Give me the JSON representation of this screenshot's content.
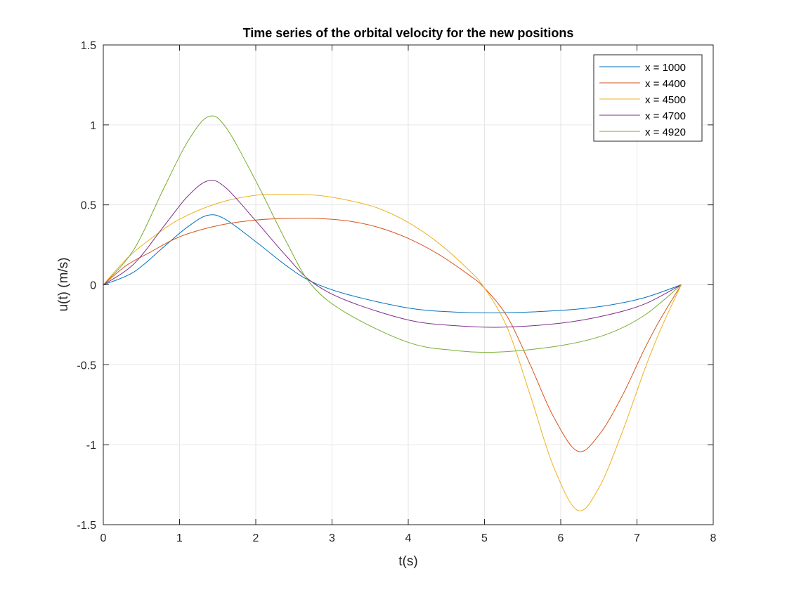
{
  "chart_data": {
    "type": "line",
    "title": "Time series of the orbital velocity for the new positions",
    "xlabel": "t(s)",
    "ylabel": "u(t) (m/s)",
    "xlim": [
      0,
      8
    ],
    "ylim": [
      -1.5,
      1.5
    ],
    "xticks": [
      0,
      1,
      2,
      3,
      4,
      5,
      6,
      7,
      8
    ],
    "xtick_labels": [
      "0",
      "1",
      "2",
      "3",
      "4",
      "5",
      "6",
      "7",
      "8"
    ],
    "yticks": [
      -1.5,
      -1,
      -0.5,
      0,
      0.5,
      1,
      1.5
    ],
    "ytick_labels": [
      "-1.5",
      "-1",
      "-0.5",
      "0",
      "0.5",
      "1",
      "1.5"
    ],
    "grid": true,
    "legend_position": "top-right",
    "series": [
      {
        "name": "x = 1000",
        "color": "#0072BD",
        "x": [
          0,
          0.4,
          0.8,
          1.1,
          1.37,
          1.6,
          2.0,
          2.4,
          2.73,
          3.2,
          4.0,
          4.6,
          5.2,
          6.0,
          6.6,
          7.1,
          7.58
        ],
        "y": [
          0,
          0.08,
          0.24,
          0.36,
          0.435,
          0.41,
          0.27,
          0.12,
          0.02,
          -0.06,
          -0.145,
          -0.17,
          -0.175,
          -0.16,
          -0.13,
          -0.08,
          0
        ]
      },
      {
        "name": "x = 4400",
        "color": "#D95319",
        "x": [
          0,
          0.3,
          0.6,
          1.0,
          1.5,
          2.0,
          2.4,
          2.8,
          3.2,
          3.6,
          4.0,
          4.4,
          4.8,
          5.0,
          5.3,
          5.6,
          5.9,
          6.22,
          6.5,
          6.8,
          7.1,
          7.3,
          7.58
        ],
        "y": [
          0,
          0.12,
          0.2,
          0.3,
          0.37,
          0.405,
          0.415,
          0.415,
          0.4,
          0.36,
          0.29,
          0.19,
          0.06,
          -0.02,
          -0.2,
          -0.5,
          -0.82,
          -1.04,
          -0.94,
          -0.7,
          -0.4,
          -0.22,
          0
        ]
      },
      {
        "name": "x = 4500",
        "color": "#EDB120",
        "x": [
          0,
          0.3,
          0.6,
          1.0,
          1.5,
          2.0,
          2.4,
          2.8,
          3.2,
          3.6,
          4.0,
          4.4,
          4.8,
          5.0,
          5.3,
          5.6,
          5.9,
          6.22,
          6.5,
          6.8,
          7.1,
          7.3,
          7.58
        ],
        "y": [
          0,
          0.16,
          0.28,
          0.41,
          0.51,
          0.56,
          0.565,
          0.56,
          0.53,
          0.48,
          0.39,
          0.26,
          0.09,
          -0.02,
          -0.27,
          -0.69,
          -1.13,
          -1.41,
          -1.27,
          -0.93,
          -0.53,
          -0.29,
          0
        ]
      },
      {
        "name": "x = 4700",
        "color": "#7E2F8E",
        "x": [
          0,
          0.4,
          0.8,
          1.1,
          1.37,
          1.6,
          2.0,
          2.4,
          2.73,
          3.2,
          4.0,
          4.6,
          5.2,
          6.0,
          6.6,
          7.1,
          7.58
        ],
        "y": [
          0,
          0.13,
          0.37,
          0.55,
          0.65,
          0.61,
          0.4,
          0.18,
          0.02,
          -0.1,
          -0.22,
          -0.255,
          -0.265,
          -0.24,
          -0.19,
          -0.12,
          0
        ]
      },
      {
        "name": "x = 4920",
        "color": "#77AC30",
        "x": [
          0,
          0.4,
          0.8,
          1.1,
          1.37,
          1.6,
          2.0,
          2.4,
          2.73,
          3.2,
          4.0,
          4.6,
          5.2,
          6.0,
          6.6,
          7.1,
          7.58
        ],
        "y": [
          0,
          0.22,
          0.61,
          0.89,
          1.05,
          0.99,
          0.65,
          0.27,
          0.0,
          -0.18,
          -0.36,
          -0.41,
          -0.42,
          -0.38,
          -0.31,
          -0.19,
          0
        ]
      }
    ]
  }
}
